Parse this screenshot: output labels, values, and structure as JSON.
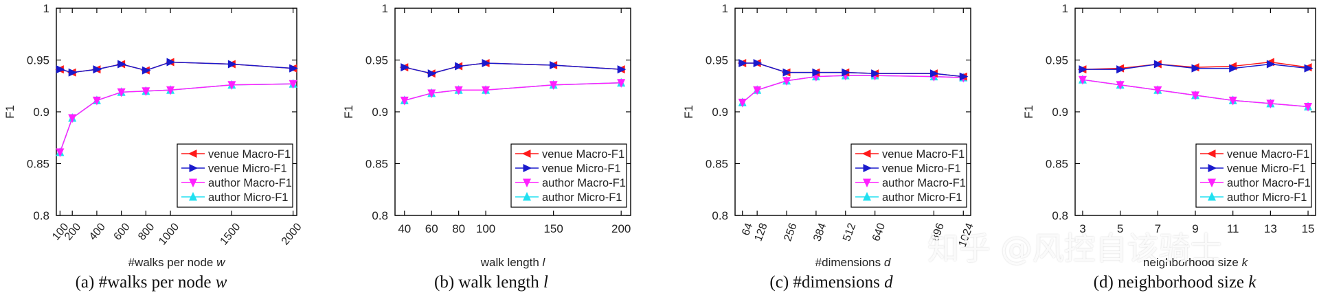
{
  "chart_data": [
    {
      "type": "line",
      "panel": "a",
      "caption_prefix": "(a) #walks per node",
      "caption_symbol": "w",
      "xlabel": "#walks per node",
      "xsymbol": "w",
      "ylabel": "F1",
      "ylim": [
        0.8,
        1.0
      ],
      "yticks": [
        "0.8",
        "0.85",
        "0.9",
        "0.95",
        "1"
      ],
      "xlim": [
        70,
        2030
      ],
      "x": [
        100,
        200,
        400,
        600,
        800,
        1000,
        1500,
        2000
      ],
      "xticklabels": [
        "100",
        "200",
        "400",
        "600",
        "800",
        "1000",
        "1500",
        "2000"
      ],
      "xtick_rotation": -50,
      "legend_position": "bottom-right",
      "series": [
        {
          "name": "venue Macro-F1",
          "values": [
            0.941,
            0.938,
            0.941,
            0.946,
            0.94,
            0.948,
            0.946,
            0.942
          ]
        },
        {
          "name": "venue Micro-F1",
          "values": [
            0.941,
            0.938,
            0.941,
            0.946,
            0.94,
            0.948,
            0.946,
            0.942
          ]
        },
        {
          "name": "author Macro-F1",
          "values": [
            0.861,
            0.894,
            0.911,
            0.919,
            0.92,
            0.921,
            0.926,
            0.927
          ]
        },
        {
          "name": "author Micro-F1",
          "values": [
            0.861,
            0.894,
            0.911,
            0.919,
            0.92,
            0.921,
            0.926,
            0.927
          ]
        }
      ]
    },
    {
      "type": "line",
      "panel": "b",
      "caption_prefix": "(b) walk length",
      "caption_symbol": "l",
      "xlabel": "walk length",
      "xsymbol": "l",
      "ylabel": "F1",
      "ylim": [
        0.8,
        1.0
      ],
      "yticks": [
        "0.8",
        "0.85",
        "0.9",
        "0.95",
        "1"
      ],
      "xlim": [
        33,
        207
      ],
      "x": [
        40,
        60,
        80,
        100,
        150,
        200
      ],
      "xticklabels": [
        "40",
        "60",
        "80",
        "100",
        "150",
        "200"
      ],
      "xtick_rotation": 0,
      "legend_position": "bottom-right",
      "series": [
        {
          "name": "venue Macro-F1",
          "values": [
            0.943,
            0.937,
            0.944,
            0.947,
            0.945,
            0.941
          ]
        },
        {
          "name": "venue Micro-F1",
          "values": [
            0.943,
            0.937,
            0.944,
            0.947,
            0.945,
            0.941
          ]
        },
        {
          "name": "author Macro-F1",
          "values": [
            0.911,
            0.918,
            0.921,
            0.921,
            0.926,
            0.928
          ]
        },
        {
          "name": "author Micro-F1",
          "values": [
            0.911,
            0.918,
            0.921,
            0.921,
            0.926,
            0.928
          ]
        }
      ]
    },
    {
      "type": "line",
      "panel": "c",
      "caption_prefix": "(c) #dimensions",
      "caption_symbol": "d",
      "xlabel": "#dimensions",
      "xsymbol": "d",
      "ylabel": "F1",
      "ylim": [
        0.8,
        1.0
      ],
      "yticks": [
        "0.8",
        "0.85",
        "0.9",
        "0.95",
        "1"
      ],
      "xlim": [
        32,
        1056
      ],
      "x": [
        64,
        128,
        256,
        384,
        512,
        640,
        896,
        1024
      ],
      "xticklabels": [
        "64",
        "128",
        "256",
        "384",
        "512",
        "640",
        "896",
        "1024"
      ],
      "xtick_rotation": -70,
      "legend_position": "bottom-right",
      "series": [
        {
          "name": "venue Macro-F1",
          "values": [
            0.947,
            0.947,
            0.938,
            0.938,
            0.938,
            0.937,
            0.937,
            0.934
          ]
        },
        {
          "name": "venue Micro-F1",
          "values": [
            0.947,
            0.947,
            0.938,
            0.938,
            0.938,
            0.937,
            0.937,
            0.934
          ]
        },
        {
          "name": "author Macro-F1",
          "values": [
            0.909,
            0.921,
            0.93,
            0.934,
            0.935,
            0.935,
            0.934,
            0.933
          ]
        },
        {
          "name": "author Micro-F1",
          "values": [
            0.909,
            0.921,
            0.93,
            0.934,
            0.935,
            0.935,
            0.934,
            0.933
          ]
        }
      ]
    },
    {
      "type": "line",
      "panel": "d",
      "caption_prefix": "(d) neighborhood size",
      "caption_symbol": "k",
      "xlabel": "neighborhood size",
      "xsymbol": "k",
      "ylabel": "F1",
      "ylim": [
        0.8,
        1.0
      ],
      "yticks": [
        "0.8",
        "0.85",
        "0.9",
        "0.95",
        "1"
      ],
      "xlim": [
        2.6,
        15.4
      ],
      "x": [
        3,
        5,
        7,
        9,
        11,
        13,
        15
      ],
      "xticklabels": [
        "3",
        "5",
        "7",
        "9",
        "11",
        "13",
        "15"
      ],
      "xtick_rotation": 0,
      "legend_position": "bottom-right",
      "series": [
        {
          "name": "venue Macro-F1",
          "values": [
            0.941,
            0.942,
            0.946,
            0.943,
            0.944,
            0.948,
            0.943
          ]
        },
        {
          "name": "venue Micro-F1",
          "values": [
            0.941,
            0.941,
            0.946,
            0.942,
            0.942,
            0.946,
            0.942
          ]
        },
        {
          "name": "author Macro-F1",
          "values": [
            0.931,
            0.926,
            0.921,
            0.916,
            0.911,
            0.908,
            0.905
          ]
        },
        {
          "name": "author Micro-F1",
          "values": [
            0.931,
            0.926,
            0.921,
            0.916,
            0.911,
            0.908,
            0.905
          ]
        }
      ]
    }
  ],
  "series_styles": [
    {
      "color": "#ff1a1a",
      "marker": "triangle-left"
    },
    {
      "color": "#1a1acc",
      "marker": "triangle-right"
    },
    {
      "color": "#ff20ff",
      "marker": "triangle-down"
    },
    {
      "color": "#20e0f0",
      "marker": "triangle-up"
    }
  ],
  "watermark": "知乎 @风控自该骑士"
}
